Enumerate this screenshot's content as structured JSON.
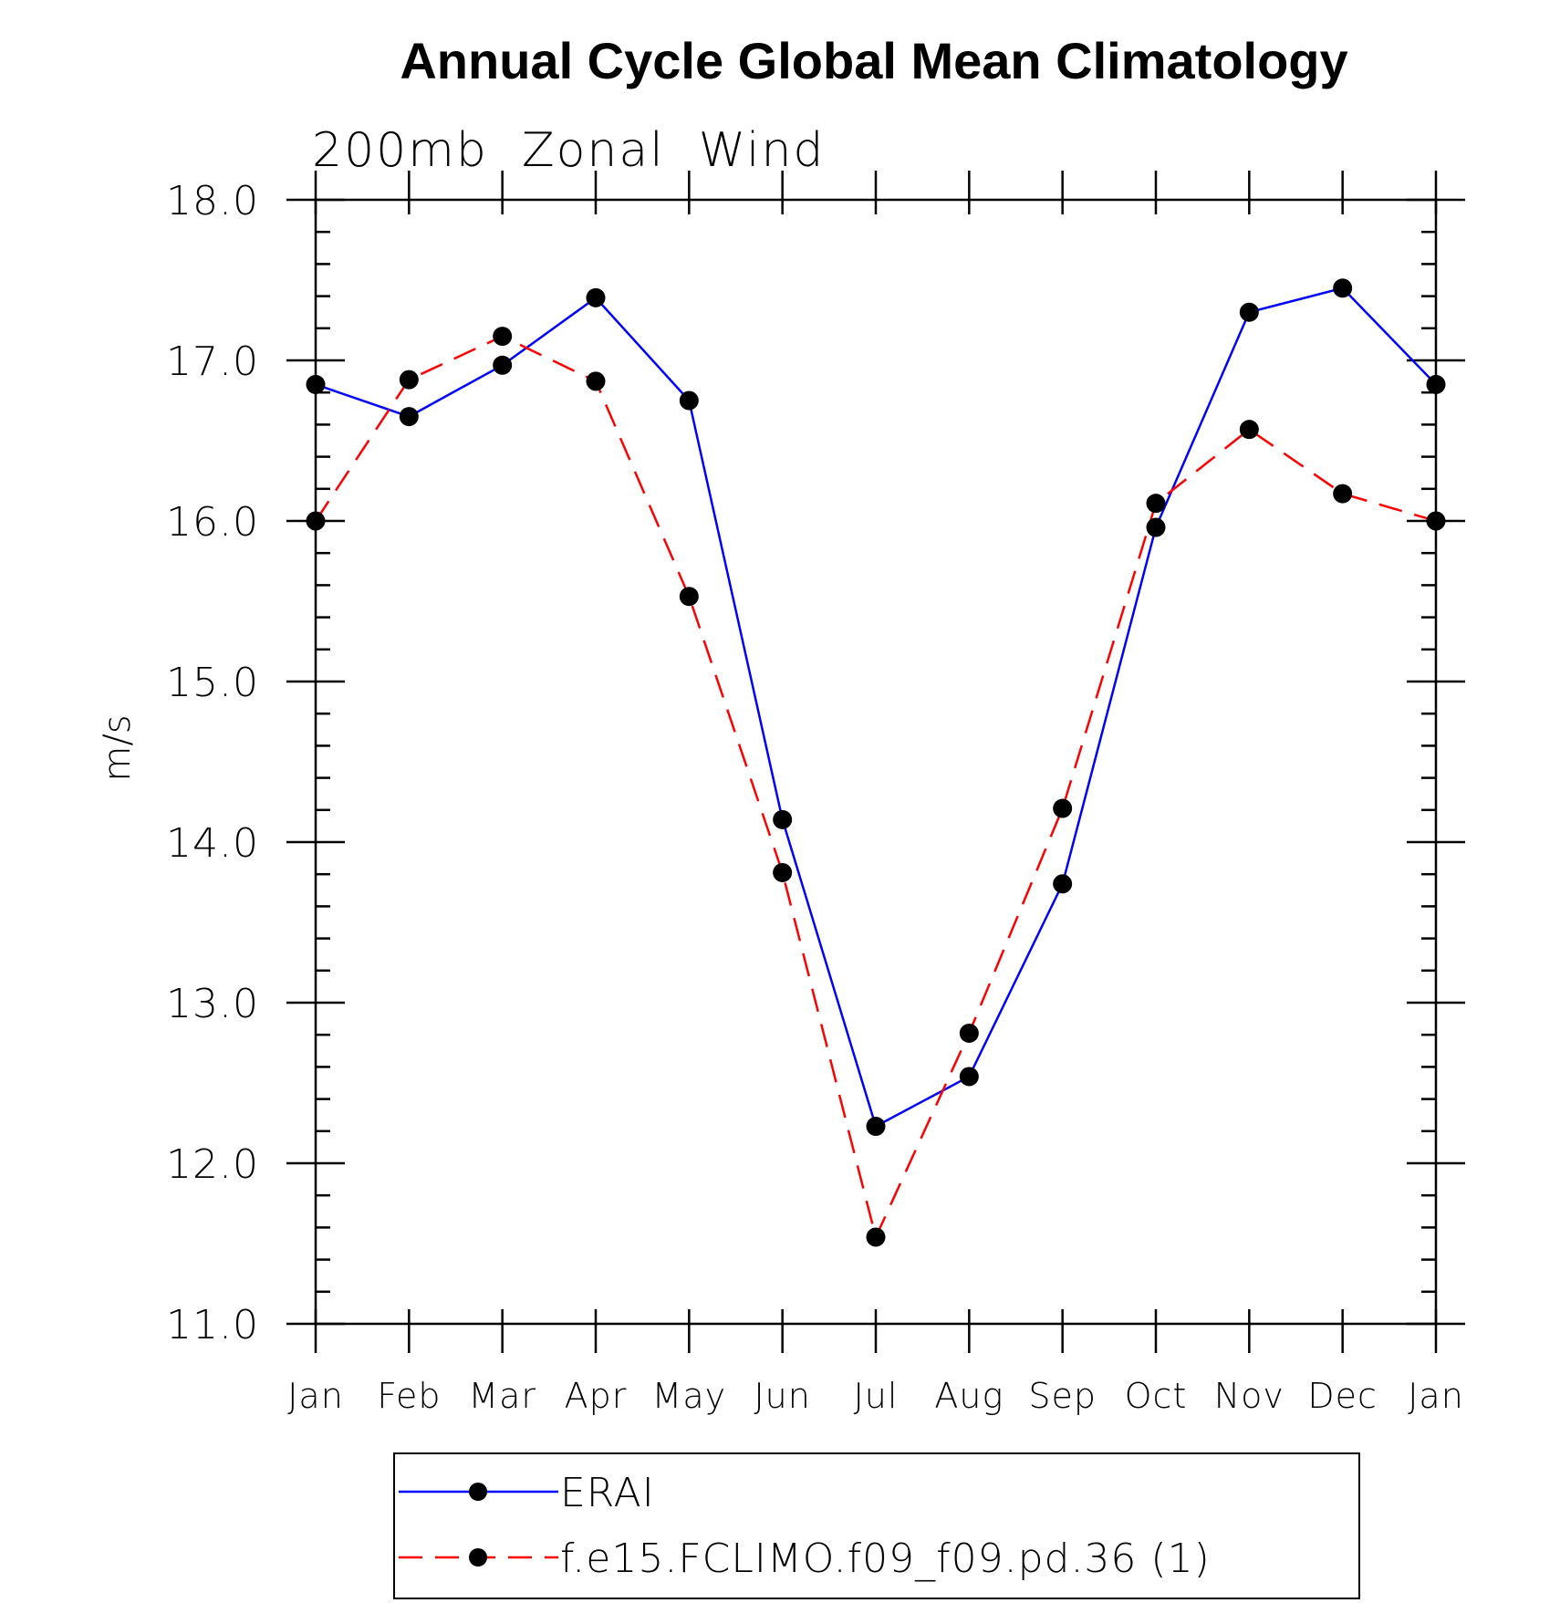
{
  "chart_data": {
    "type": "line",
    "title": "Annual Cycle Global Mean Climatology",
    "subtitle": "200mb  Zonal  Wind",
    "xlabel": "",
    "ylabel": "m/s",
    "ylim": [
      11.0,
      18.0
    ],
    "yticks": [
      "11.0",
      "12.0",
      "13.0",
      "14.0",
      "15.0",
      "16.0",
      "17.0",
      "18.0"
    ],
    "ytick_values": [
      11,
      12,
      13,
      14,
      15,
      16,
      17,
      18
    ],
    "categories": [
      "Jan",
      "Feb",
      "Mar",
      "Apr",
      "May",
      "Jun",
      "Jul",
      "Aug",
      "Sep",
      "Oct",
      "Nov",
      "Dec",
      "Jan"
    ],
    "series": [
      {
        "name": "ERAI",
        "color": "#0000ff",
        "style": "solid",
        "values": [
          16.85,
          16.65,
          16.97,
          17.39,
          16.75,
          14.14,
          12.23,
          12.54,
          13.74,
          15.96,
          17.3,
          17.45,
          16.85
        ]
      },
      {
        "name": "f.e15.FCLIMO.f09_f09.pd.36 (1)",
        "color": "#ff0000",
        "style": "dashed",
        "values": [
          16.0,
          16.88,
          17.15,
          16.87,
          15.53,
          13.81,
          11.54,
          12.81,
          14.21,
          16.11,
          16.57,
          16.17,
          16.0
        ]
      }
    ],
    "legend_position": "bottom-center",
    "grid": false
  }
}
